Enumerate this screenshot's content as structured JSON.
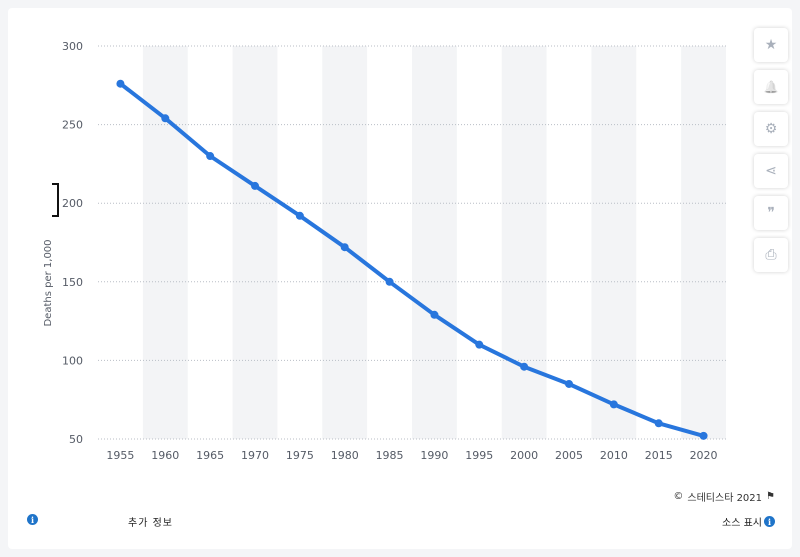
{
  "chart_data": {
    "type": "line",
    "title": "",
    "xlabel": "",
    "ylabel": "Deaths per 1,000",
    "x": [
      "1955",
      "1960",
      "1965",
      "1970",
      "1975",
      "1980",
      "1985",
      "1990",
      "1995",
      "2000",
      "2005",
      "2010",
      "2015",
      "2020"
    ],
    "series": [
      {
        "values": [
          276,
          254,
          230,
          211,
          192,
          172,
          150,
          129,
          110,
          96,
          85,
          72,
          60,
          52
        ]
      }
    ],
    "ylim": [
      50,
      300
    ],
    "yticks": [
      "50",
      "100",
      "150",
      "200",
      "250",
      "300"
    ],
    "grid": true,
    "line_color": "#2876dd",
    "band_color": "#f3f4f6"
  },
  "toolbar": {
    "buttons": [
      {
        "name": "star-icon",
        "glyph": "★"
      },
      {
        "name": "bell-icon",
        "glyph": "🔔"
      },
      {
        "name": "gear-icon",
        "glyph": "⚙"
      },
      {
        "name": "share-icon",
        "glyph": "⋖"
      },
      {
        "name": "quote-icon",
        "glyph": "❞"
      },
      {
        "name": "print-icon",
        "glyph": "⎙"
      }
    ]
  },
  "footer": {
    "copyright_symbol": "©",
    "copyright_text": "스테티스타 2021",
    "flag_icon": "⚑",
    "more_info": "추가 정보",
    "source": "소스 표시",
    "info_glyph": "i"
  }
}
